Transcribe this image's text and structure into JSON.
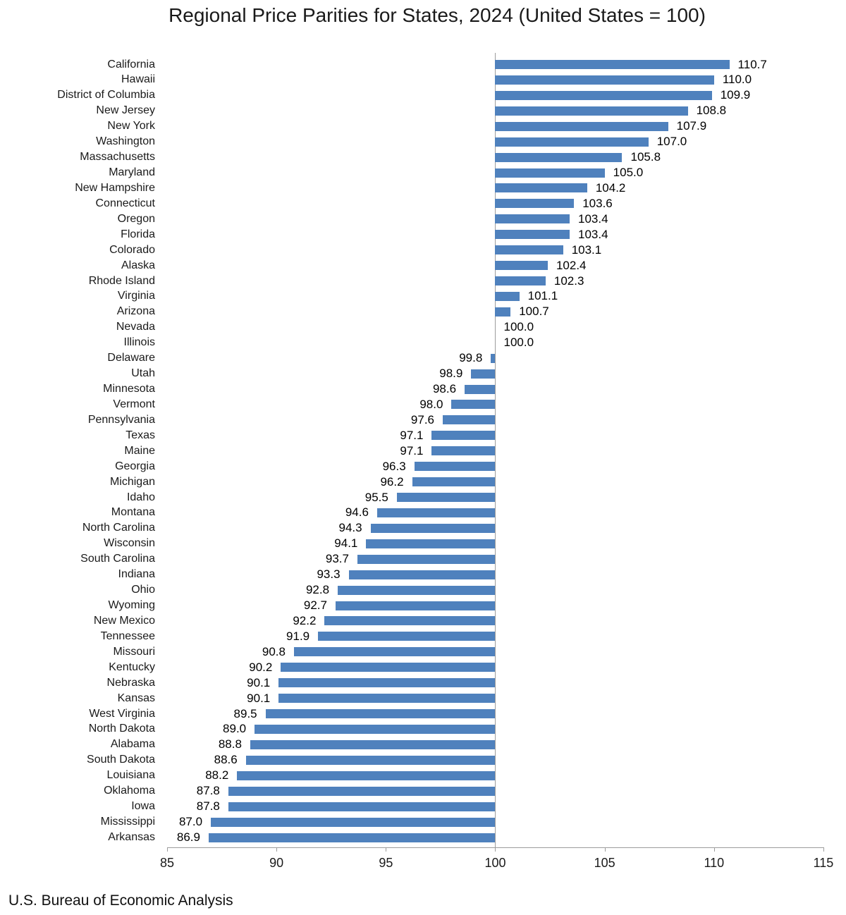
{
  "title": "Regional Price Parities for States, 2024 (United States = 100)",
  "source": "U.S. Bureau of Economic Analysis",
  "colors": {
    "bar": "#4f81bd",
    "axis": "#9c9c9c",
    "baseline": "#9c9c9c",
    "text": "#1a1a1a"
  },
  "chart_data": {
    "type": "bar",
    "orientation": "horizontal",
    "title": "Regional Price Parities for States, 2024 (United States = 100)",
    "baseline": 100,
    "xlim": [
      85,
      115
    ],
    "x_ticks": [
      85,
      90,
      95,
      100,
      105,
      110,
      115
    ],
    "grid": false,
    "legend": false,
    "value_labels": true,
    "categories": [
      "California",
      "Hawaii",
      "District of Columbia",
      "New Jersey",
      "New York",
      "Washington",
      "Massachusetts",
      "Maryland",
      "New Hampshire",
      "Connecticut",
      "Oregon",
      "Florida",
      "Colorado",
      "Alaska",
      "Rhode Island",
      "Virginia",
      "Arizona",
      "Nevada",
      "Illinois",
      "Delaware",
      "Utah",
      "Minnesota",
      "Vermont",
      "Pennsylvania",
      "Texas",
      "Maine",
      "Georgia",
      "Michigan",
      "Idaho",
      "Montana",
      "North Carolina",
      "Wisconsin",
      "South Carolina",
      "Indiana",
      "Ohio",
      "Wyoming",
      "New Mexico",
      "Tennessee",
      "Missouri",
      "Kentucky",
      "Nebraska",
      "Kansas",
      "West Virginia",
      "North Dakota",
      "Alabama",
      "South Dakota",
      "Louisiana",
      "Oklahoma",
      "Iowa",
      "Mississippi",
      "Arkansas"
    ],
    "values": [
      110.7,
      110.0,
      109.9,
      108.8,
      107.9,
      107.0,
      105.8,
      105.0,
      104.2,
      103.6,
      103.4,
      103.4,
      103.1,
      102.4,
      102.3,
      101.1,
      100.7,
      100.0,
      100.0,
      99.8,
      98.9,
      98.6,
      98.0,
      97.6,
      97.1,
      97.1,
      96.3,
      96.2,
      95.5,
      94.6,
      94.3,
      94.1,
      93.7,
      93.3,
      92.8,
      92.7,
      92.2,
      91.9,
      90.8,
      90.2,
      90.1,
      90.1,
      89.5,
      89.0,
      88.8,
      88.6,
      88.2,
      87.8,
      87.8,
      87.0,
      86.9
    ]
  }
}
